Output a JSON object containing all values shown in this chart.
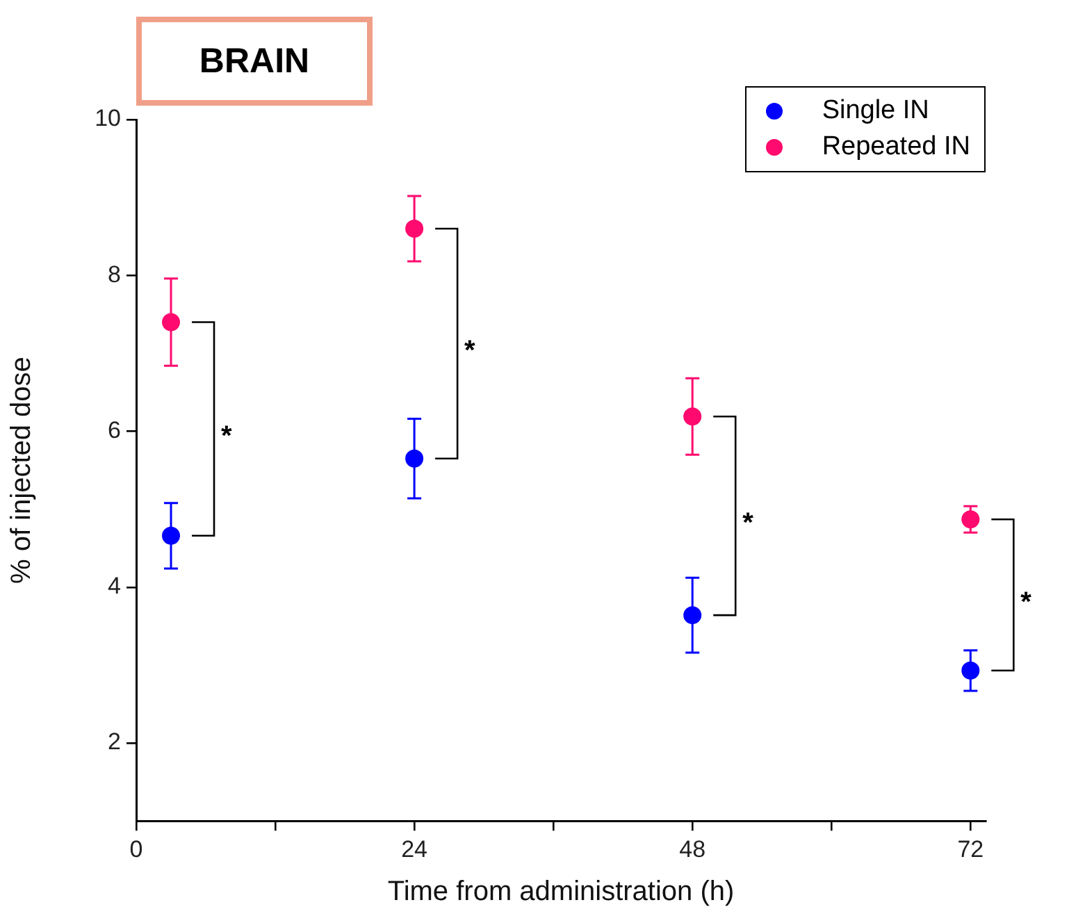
{
  "chart_data": {
    "type": "scatter",
    "title": "BRAIN",
    "xlabel": "Time from administration (h)",
    "ylabel": "% of injected dose",
    "x": [
      3,
      24,
      48,
      72
    ],
    "series": [
      {
        "name": "Single IN",
        "color": "#0000ff",
        "values": [
          4.66,
          5.65,
          3.64,
          2.93
        ],
        "errors": [
          0.42,
          0.51,
          0.48,
          0.26
        ]
      },
      {
        "name": "Repeated IN",
        "color": "#ff0a6e",
        "values": [
          7.4,
          8.6,
          6.19,
          4.87
        ],
        "errors": [
          0.56,
          0.42,
          0.49,
          0.17
        ]
      }
    ],
    "xlim": [
      0,
      73.3
    ],
    "xticks": [
      0,
      {
        "value": 12,
        "label": null
      },
      24,
      {
        "value": 36,
        "label": null
      },
      48,
      {
        "value": 60,
        "label": null
      },
      72
    ],
    "ylim": [
      1,
      10
    ],
    "yticks": [
      2,
      4,
      6,
      8,
      10
    ],
    "annotations": [
      "*",
      "*",
      "*",
      "*"
    ],
    "grid": false,
    "legend": "top right",
    "marker": "circle"
  }
}
